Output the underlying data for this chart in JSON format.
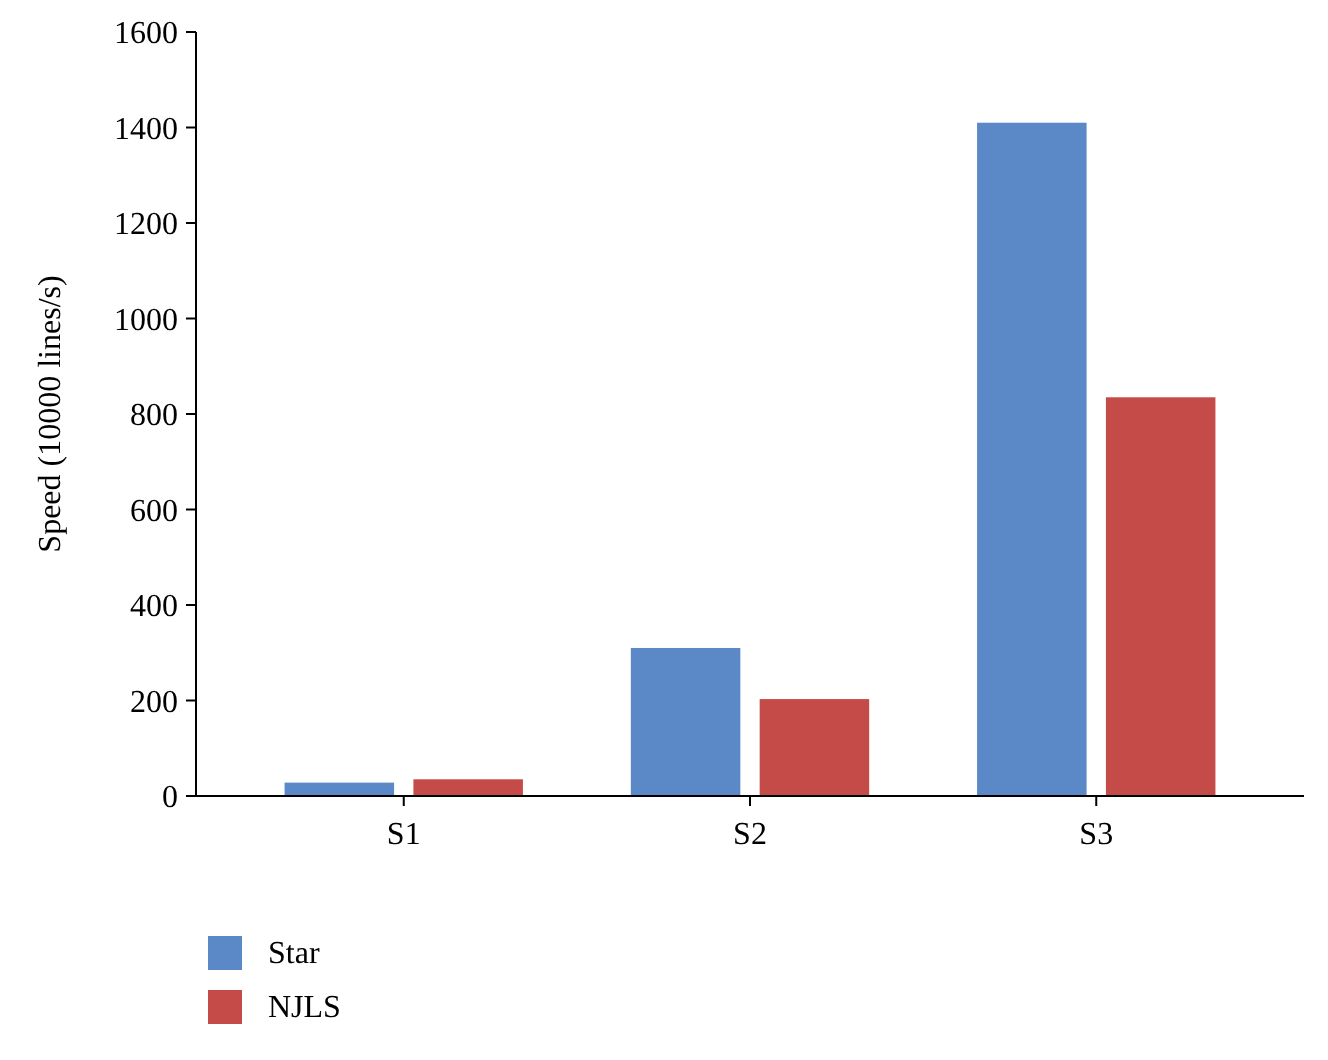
{
  "chart_data": {
    "type": "bar",
    "ylabel": "Speed (10000 lines/s)",
    "categories": [
      "S1",
      "S2",
      "S3"
    ],
    "series": [
      {
        "name": "Star",
        "color": "#5b88c6",
        "values": [
          28,
          310,
          1410
        ]
      },
      {
        "name": "NJLS",
        "color": "#c54b49",
        "values": [
          35,
          203,
          835
        ]
      }
    ],
    "ylim": [
      0,
      1600
    ],
    "yticks": [
      0,
      200,
      400,
      600,
      800,
      1000,
      1200,
      1400,
      1600
    ],
    "grid": false,
    "legend": "bottom left"
  }
}
